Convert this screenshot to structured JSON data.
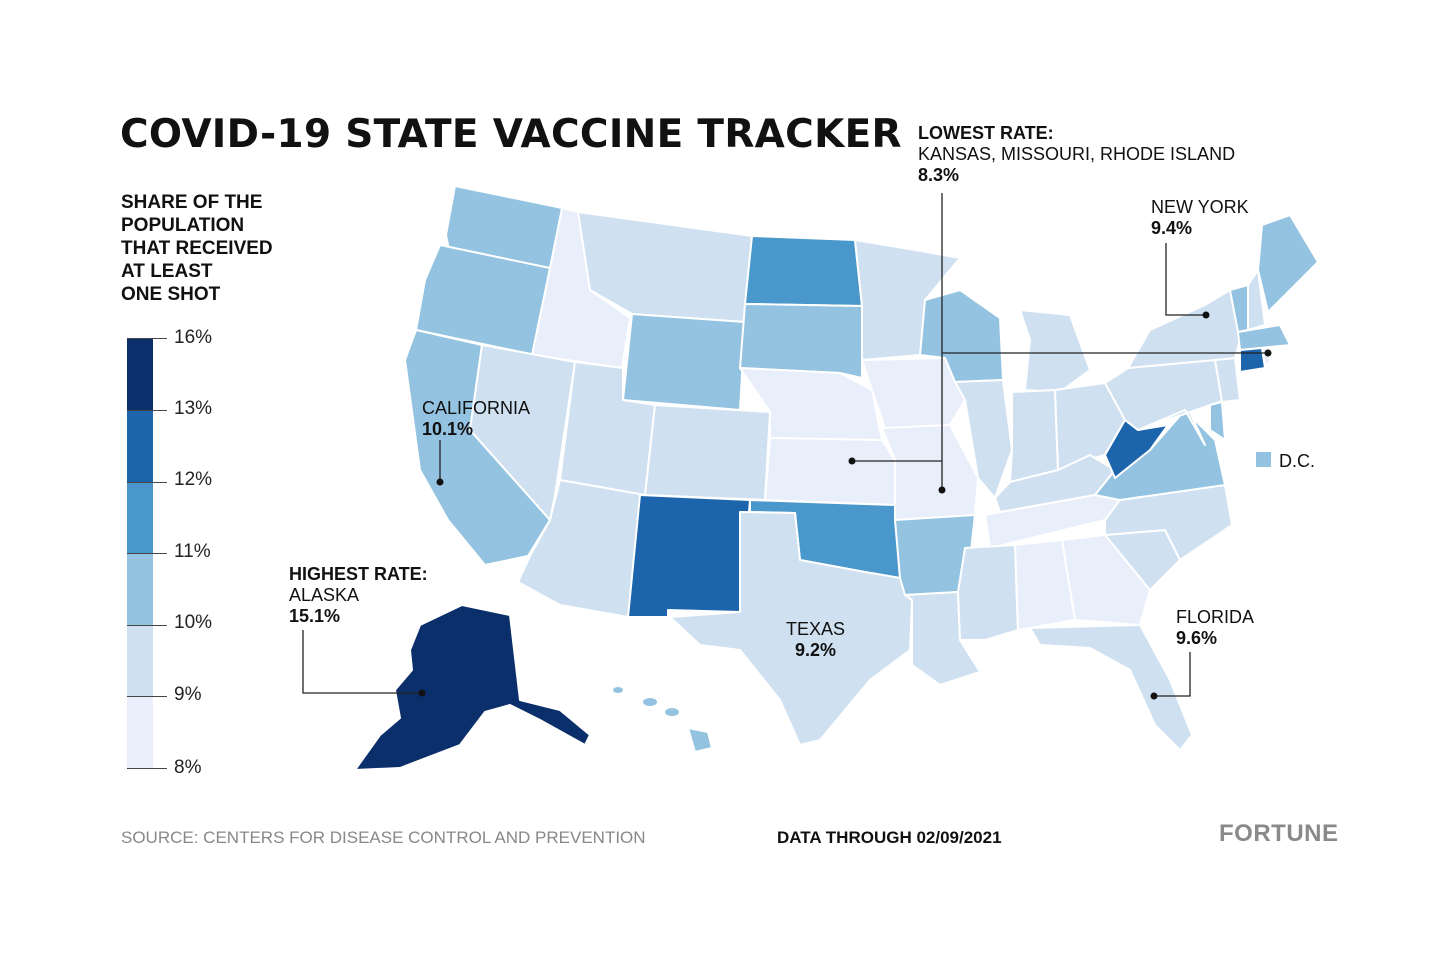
{
  "title": "COVID-19 STATE VACCINE TRACKER",
  "legend": {
    "title_lines": [
      "SHARE OF THE",
      "POPULATION",
      "THAT RECEIVED",
      "AT LEAST",
      "ONE SHOT"
    ],
    "stops": [
      {
        "label": "16%",
        "color": "#0b2f6b"
      },
      {
        "label": "13%",
        "color": "#1c65ad"
      },
      {
        "label": "12%",
        "color": "#4a98cb"
      },
      {
        "label": "11%",
        "color": "#93c3e0"
      },
      {
        "label": "10%",
        "color": "#cfe0f0"
      },
      {
        "label": "9%",
        "color": "#e9eefb"
      },
      {
        "label": "8%",
        "color": null
      }
    ]
  },
  "callouts": {
    "lowest": {
      "heading": "LOWEST RATE:",
      "states": "KANSAS, MISSOURI, RHODE ISLAND",
      "value": "8.3%"
    },
    "new_york": {
      "name": "NEW YORK",
      "value": "9.4%"
    },
    "california": {
      "name": "CALIFORNIA",
      "value": "10.1%"
    },
    "highest": {
      "heading": "HIGHEST RATE:",
      "name": "ALASKA",
      "value": "15.1%"
    },
    "texas": {
      "name": "TEXAS",
      "value": "9.2%"
    },
    "florida": {
      "name": "FLORIDA",
      "value": "9.6%"
    },
    "dc": {
      "name": "D.C."
    }
  },
  "footer": {
    "source": "SOURCE: CENTERS FOR DISEASE CONTROL AND PREVENTION",
    "data_through": "DATA THROUGH 02/09/2021",
    "brand": "FORTUNE"
  },
  "colors": {
    "c8": "#e9eefb",
    "c9": "#cfe0f0",
    "c10": "#93c3e0",
    "c11": "#4a98cb",
    "c12": "#1c65ad",
    "c13": "#0b2f6b"
  }
}
